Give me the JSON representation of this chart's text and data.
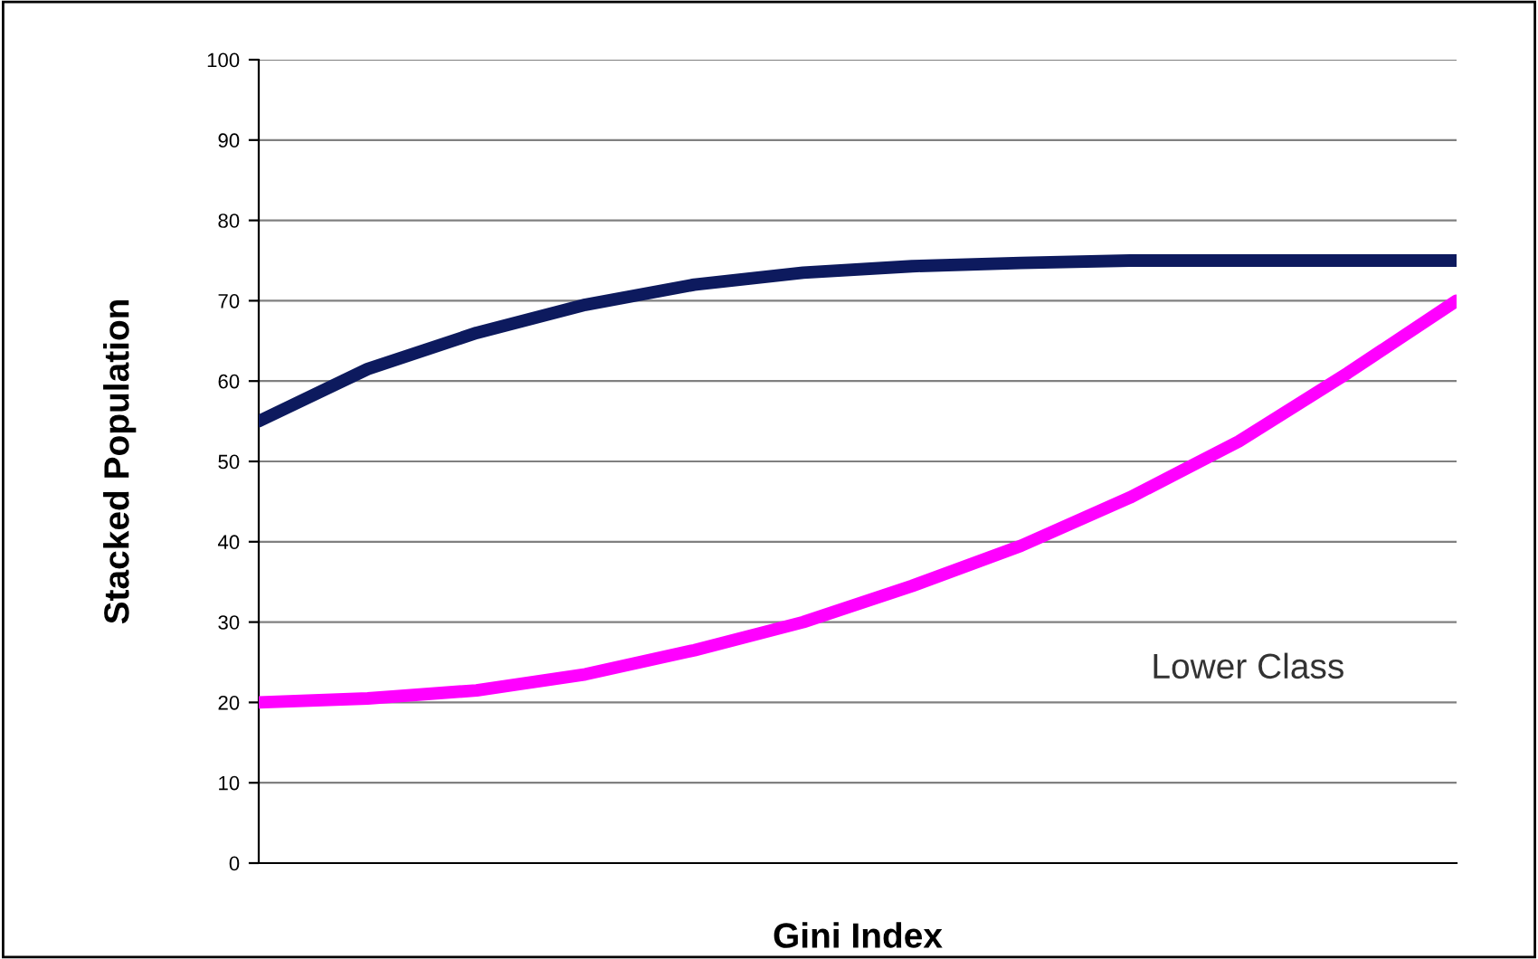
{
  "chart_data": {
    "type": "line",
    "xlabel": "Gini Index",
    "ylabel": "Stacked Population",
    "categories": [
      null,
      null,
      null,
      null,
      null,
      null,
      null,
      null,
      null,
      null,
      null,
      null
    ],
    "series": [
      {
        "color": "#0d1a5e",
        "values": [
          55,
          61.5,
          66,
          69.5,
          72,
          73.5,
          74.3,
          74.7,
          75,
          75,
          75,
          75
        ]
      },
      {
        "color": "#ff00ff",
        "values": [
          20,
          20.5,
          21.5,
          23.5,
          26.5,
          30,
          34.5,
          39.5,
          45.5,
          52.5,
          61,
          70
        ]
      }
    ],
    "ylim": [
      0,
      100
    ],
    "yticks": [
      0,
      10,
      20,
      30,
      40,
      50,
      60,
      70,
      80,
      90,
      100
    ],
    "grid": "y",
    "marker": "none",
    "line_style": "solid",
    "annotations": [
      "Lower Class"
    ]
  }
}
